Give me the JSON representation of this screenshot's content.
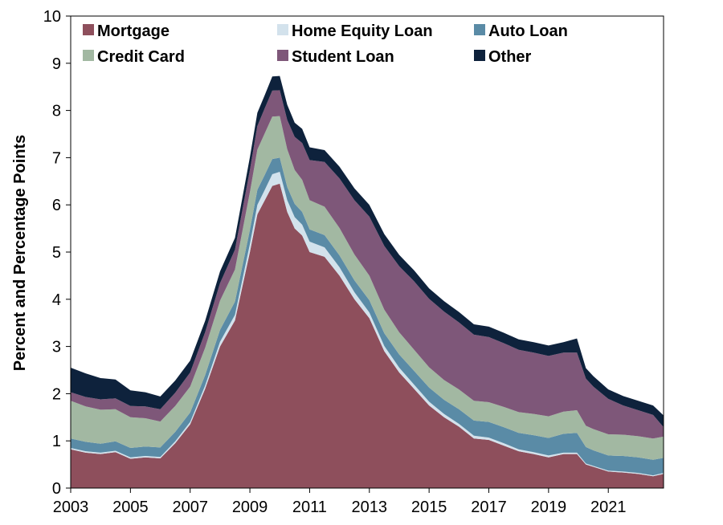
{
  "chart_data": {
    "type": "area",
    "stacked": true,
    "xlabel": "",
    "ylabel": "Percent and Percentage Points",
    "ylim": [
      0,
      10
    ],
    "yticks": [
      "0",
      "1",
      "2",
      "3",
      "4",
      "5",
      "6",
      "7",
      "8",
      "9",
      "10"
    ],
    "xlim": [
      2003,
      2022.85
    ],
    "xticks": [
      "2003",
      "2005",
      "2007",
      "2009",
      "2011",
      "2013",
      "2015",
      "2017",
      "2019",
      "2021"
    ],
    "grid": false,
    "legend_position": "top",
    "x": [
      2003.0,
      2003.5,
      2004.0,
      2004.5,
      2005.0,
      2005.5,
      2006.0,
      2006.5,
      2007.0,
      2007.5,
      2008.0,
      2008.5,
      2009.0,
      2009.25,
      2009.5,
      2009.75,
      2010.0,
      2010.25,
      2010.5,
      2010.75,
      2011.0,
      2011.5,
      2012.0,
      2012.5,
      2013.0,
      2013.5,
      2014.0,
      2014.5,
      2015.0,
      2015.5,
      2016.0,
      2016.5,
      2017.0,
      2017.5,
      2018.0,
      2018.5,
      2019.0,
      2019.5,
      2019.95,
      2020.25,
      2020.5,
      2021.0,
      2021.5,
      2022.0,
      2022.5,
      2022.85
    ],
    "series": [
      {
        "name": "Mortgage",
        "color": "#8e4f5c",
        "values": [
          0.82,
          0.75,
          0.72,
          0.76,
          0.62,
          0.65,
          0.63,
          0.95,
          1.35,
          2.1,
          3.0,
          3.55,
          5.0,
          5.8,
          6.1,
          6.4,
          6.45,
          5.85,
          5.5,
          5.35,
          5.0,
          4.9,
          4.5,
          4.0,
          3.6,
          2.9,
          2.45,
          2.1,
          1.75,
          1.5,
          1.3,
          1.05,
          1.02,
          0.9,
          0.78,
          0.72,
          0.65,
          0.72,
          0.72,
          0.5,
          0.45,
          0.35,
          0.33,
          0.3,
          0.25,
          0.3
        ]
      },
      {
        "name": "Home Equity Loan",
        "color": "#d3e2ec",
        "values": [
          0.03,
          0.03,
          0.03,
          0.03,
          0.03,
          0.03,
          0.03,
          0.04,
          0.05,
          0.07,
          0.1,
          0.12,
          0.17,
          0.2,
          0.22,
          0.25,
          0.25,
          0.25,
          0.24,
          0.23,
          0.22,
          0.2,
          0.18,
          0.15,
          0.12,
          0.11,
          0.1,
          0.09,
          0.08,
          0.07,
          0.06,
          0.06,
          0.05,
          0.05,
          0.04,
          0.04,
          0.04,
          0.03,
          0.03,
          0.02,
          0.02,
          0.02,
          0.02,
          0.02,
          0.02,
          0.02
        ]
      },
      {
        "name": "Auto Loan",
        "color": "#5a8ba6",
        "values": [
          0.2,
          0.2,
          0.19,
          0.2,
          0.2,
          0.2,
          0.2,
          0.2,
          0.2,
          0.22,
          0.25,
          0.28,
          0.3,
          0.32,
          0.32,
          0.32,
          0.3,
          0.28,
          0.28,
          0.27,
          0.26,
          0.26,
          0.25,
          0.25,
          0.26,
          0.27,
          0.28,
          0.29,
          0.3,
          0.3,
          0.31,
          0.32,
          0.33,
          0.34,
          0.35,
          0.36,
          0.37,
          0.4,
          0.42,
          0.35,
          0.33,
          0.32,
          0.33,
          0.33,
          0.33,
          0.32
        ]
      },
      {
        "name": "Credit Card",
        "color": "#a2b8a2",
        "values": [
          0.8,
          0.75,
          0.72,
          0.68,
          0.65,
          0.6,
          0.55,
          0.55,
          0.55,
          0.58,
          0.62,
          0.68,
          0.8,
          0.85,
          0.88,
          0.9,
          0.88,
          0.8,
          0.72,
          0.68,
          0.62,
          0.6,
          0.58,
          0.55,
          0.52,
          0.5,
          0.47,
          0.45,
          0.43,
          0.42,
          0.42,
          0.42,
          0.42,
          0.43,
          0.44,
          0.45,
          0.46,
          0.47,
          0.48,
          0.45,
          0.45,
          0.45,
          0.45,
          0.45,
          0.45,
          0.45
        ]
      },
      {
        "name": "Student Loan",
        "color": "#7e5779",
        "values": [
          0.18,
          0.2,
          0.22,
          0.23,
          0.24,
          0.25,
          0.26,
          0.28,
          0.3,
          0.33,
          0.37,
          0.42,
          0.47,
          0.5,
          0.53,
          0.55,
          0.55,
          0.62,
          0.7,
          0.78,
          0.85,
          0.95,
          1.05,
          1.15,
          1.25,
          1.35,
          1.4,
          1.45,
          1.45,
          1.45,
          1.42,
          1.4,
          1.38,
          1.35,
          1.32,
          1.3,
          1.28,
          1.25,
          1.22,
          1.0,
          0.9,
          0.75,
          0.62,
          0.55,
          0.5,
          0.2
        ]
      },
      {
        "name": "Other",
        "color": "#0e223c",
        "values": [
          0.52,
          0.5,
          0.45,
          0.4,
          0.33,
          0.3,
          0.27,
          0.26,
          0.25,
          0.24,
          0.25,
          0.25,
          0.27,
          0.28,
          0.28,
          0.3,
          0.3,
          0.32,
          0.3,
          0.3,
          0.27,
          0.25,
          0.25,
          0.25,
          0.25,
          0.25,
          0.24,
          0.23,
          0.22,
          0.22,
          0.22,
          0.22,
          0.22,
          0.22,
          0.22,
          0.22,
          0.22,
          0.22,
          0.3,
          0.22,
          0.22,
          0.2,
          0.2,
          0.2,
          0.2,
          0.25
        ]
      }
    ]
  }
}
